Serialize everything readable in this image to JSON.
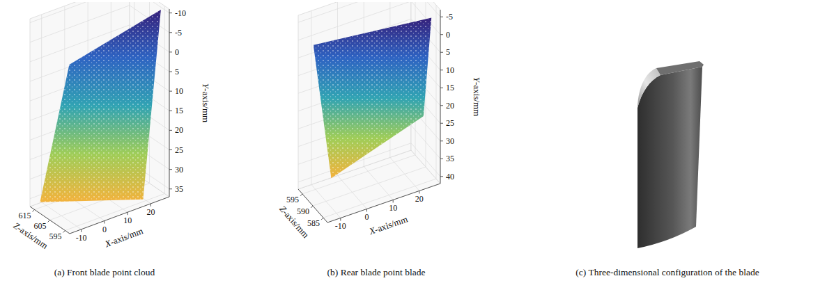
{
  "chart_data": [
    {
      "type": "scatter3d",
      "title": "(a) Front blade point cloud",
      "xlabel": "X-axis/mm",
      "ylabel": "Y-axis/mm",
      "zlabel": "Z-axis/mm",
      "xlim": [
        -15,
        28
      ],
      "ylim": [
        -11,
        37
      ],
      "zlim": [
        592,
        618
      ],
      "xticks": [
        -10,
        0,
        10,
        20
      ],
      "yticks": [
        -10,
        -5,
        0,
        5,
        10,
        15,
        20,
        25,
        30,
        35
      ],
      "zticks": [
        595,
        605,
        615
      ],
      "grid": true,
      "x": [
        27,
        -2,
        -12,
        18
      ],
      "y": [
        -10,
        2,
        36,
        36
      ],
      "z": [
        596,
        612,
        616,
        594
      ]
    },
    {
      "type": "scatter3d",
      "title": "(b) Rear blade point blade",
      "xlabel": "X-axis/mm",
      "ylabel": "Y-axis/mm",
      "zlabel": "Z-axis/mm",
      "xlim": [
        -15,
        28
      ],
      "ylim": [
        -7,
        42
      ],
      "zlim": [
        583,
        597
      ],
      "xticks": [
        -10,
        0,
        10,
        20
      ],
      "yticks": [
        -5,
        0,
        5,
        10,
        15,
        20,
        25,
        30,
        35,
        40
      ],
      "zticks": [
        585,
        590,
        595
      ],
      "grid": true,
      "x": [
        -10,
        27,
        24,
        -8
      ],
      "y": [
        2,
        -3,
        24,
        36
      ],
      "z": [
        596,
        586,
        586,
        590
      ]
    },
    {
      "type": "render",
      "title": "(c) Three-dimensional configuration of the blade"
    }
  ]
}
